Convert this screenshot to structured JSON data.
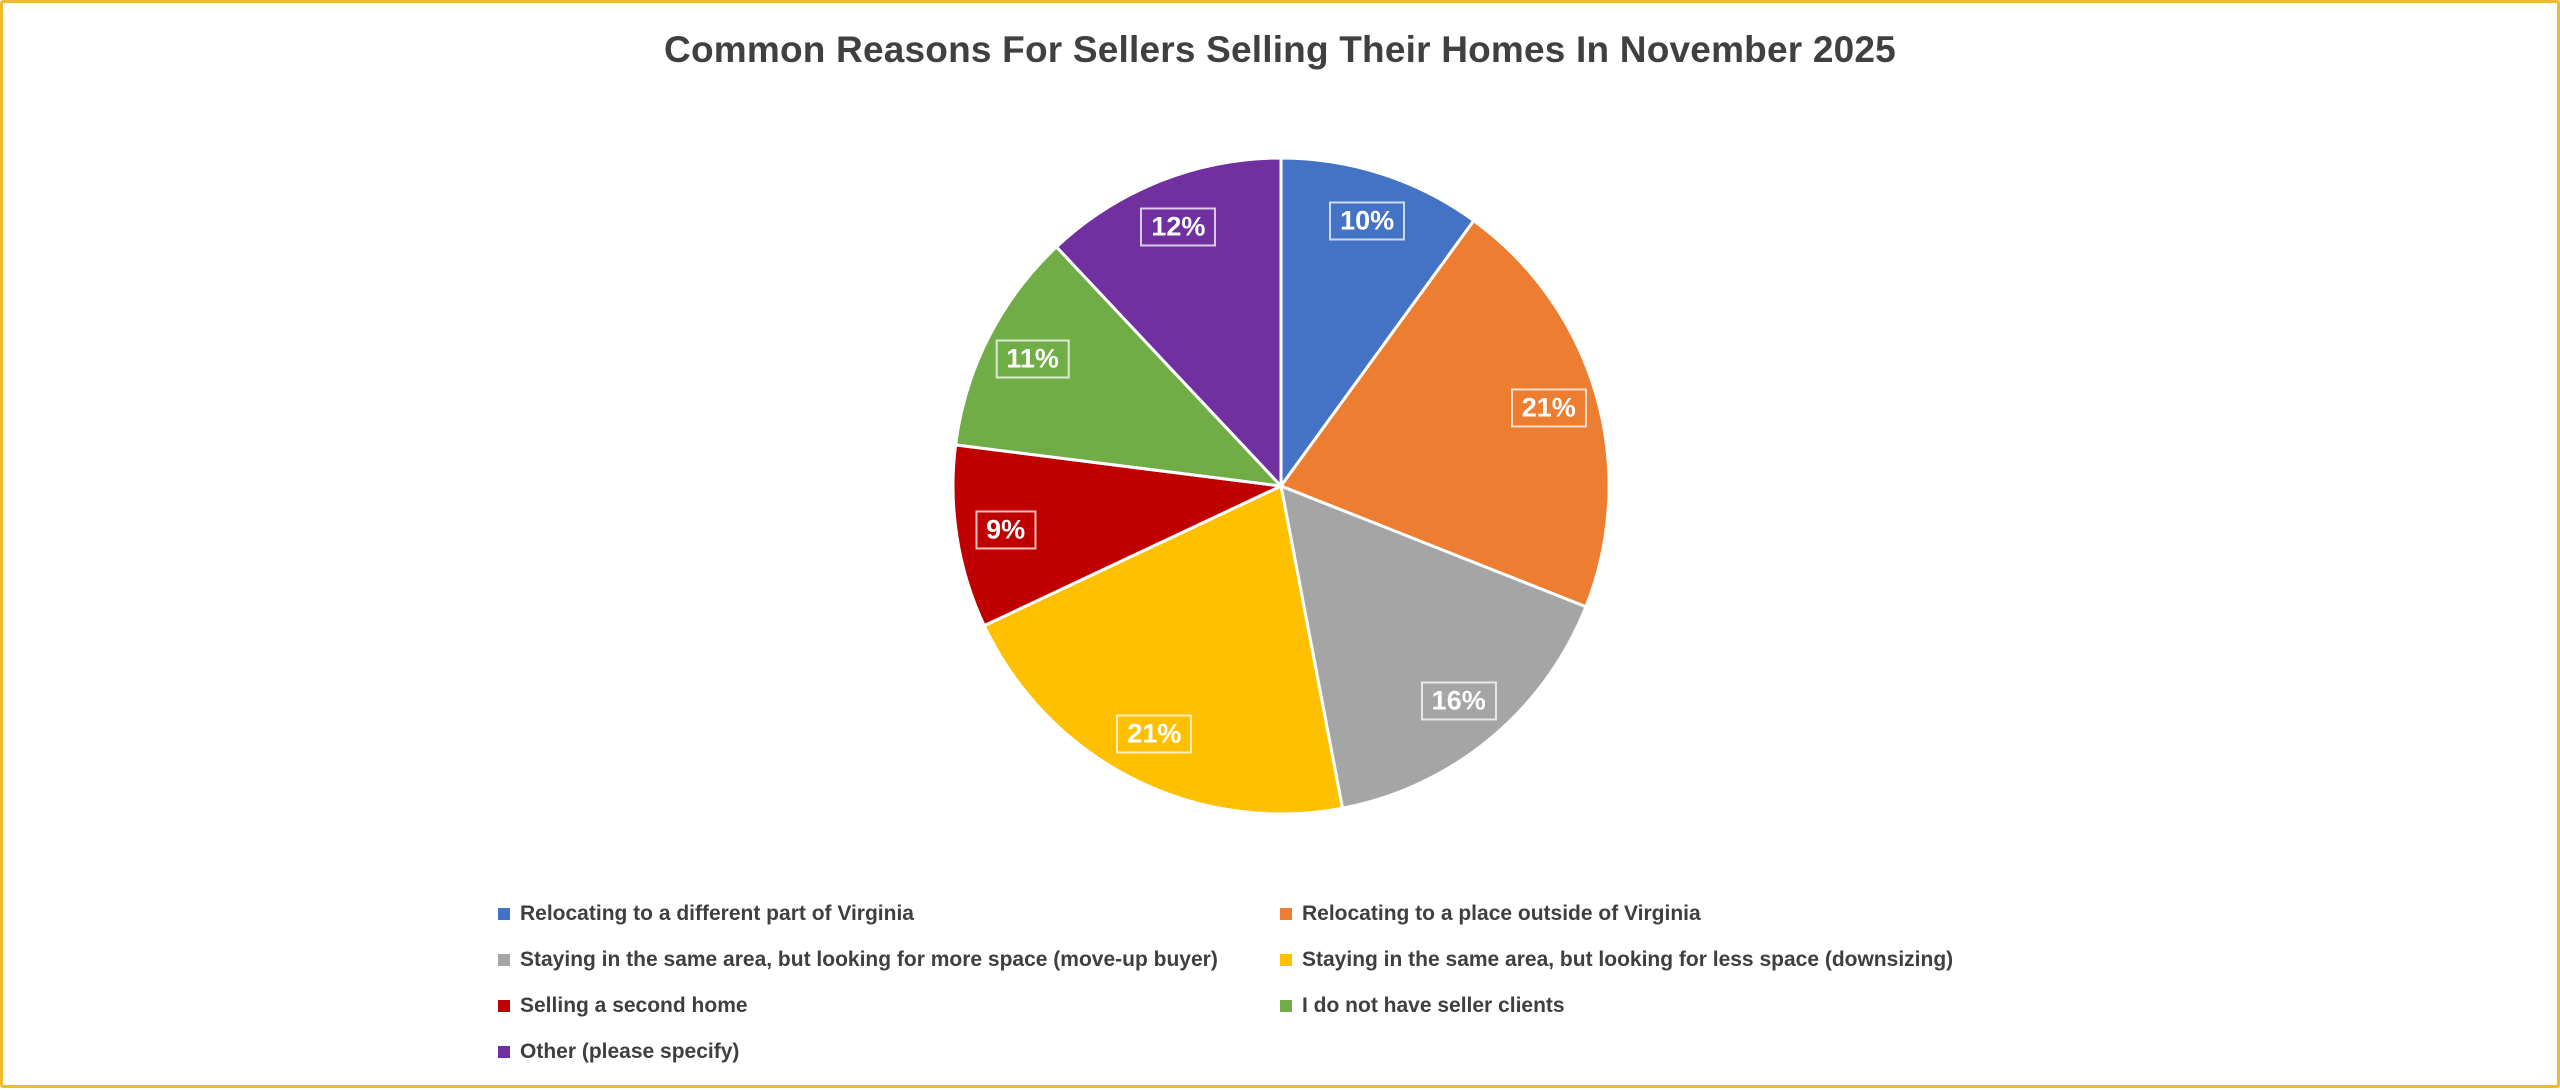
{
  "page": {
    "background": "#FFFFFF",
    "border_color": "#EDB92E",
    "title_color": "#404040"
  },
  "chart_data": {
    "type": "pie",
    "title": "Common Reasons For Sellers Selling Their Homes In November 2025",
    "label_format": "percent",
    "start_angle_deg": 0,
    "direction": "clockwise",
    "legend_position": "bottom",
    "legend_columns": 2,
    "slices": [
      {
        "label": "Relocating to a different part of Virginia",
        "value": 10,
        "display": "10%",
        "color": "#4472C4"
      },
      {
        "label": "Relocating to a place outside of Virginia",
        "value": 21,
        "display": "21%",
        "color": "#ED7D31"
      },
      {
        "label": "Staying in the same area, but looking for more space (move-up buyer)",
        "value": 16,
        "display": "16%",
        "color": "#A5A5A5"
      },
      {
        "label": "Staying in the same area, but looking for less space (downsizing)",
        "value": 21,
        "display": "21%",
        "color": "#FFC000"
      },
      {
        "label": "Selling a second home",
        "value": 9,
        "display": "9%",
        "color": "#C00000"
      },
      {
        "label": "I do not have seller clients",
        "value": 11,
        "display": "11%",
        "color": "#70AD47"
      },
      {
        "label": "Other (please specify)",
        "value": 12,
        "display": "12%",
        "color": "#7030A0"
      }
    ]
  }
}
